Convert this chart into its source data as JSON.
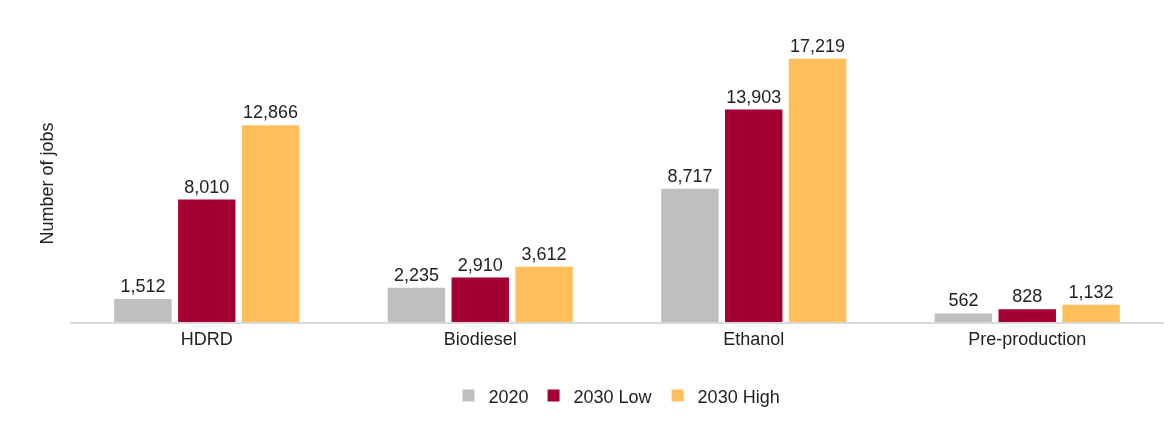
{
  "chart_data": {
    "type": "bar",
    "ylabel": "Number of jobs",
    "categories": [
      "HDRD",
      "Biodiesel",
      "Ethanol",
      "Pre-production"
    ],
    "series": [
      {
        "name": "2020",
        "color": "#bfbfbf",
        "values": [
          1512,
          2235,
          8717,
          562
        ],
        "value_labels": [
          "1,512",
          "2,235",
          "8,717",
          "562"
        ]
      },
      {
        "name": "2030 Low",
        "color": "#a50034",
        "values": [
          8010,
          2910,
          13903,
          828
        ],
        "value_labels": [
          "8,010",
          "2,910",
          "13,903",
          "828"
        ]
      },
      {
        "name": "2030 High",
        "color": "#ffc05c",
        "values": [
          12866,
          3612,
          17219,
          1132
        ],
        "value_labels": [
          "12,866",
          "3,612",
          "17,219",
          "1,132"
        ]
      }
    ],
    "grid": false,
    "legend": "bottom"
  }
}
